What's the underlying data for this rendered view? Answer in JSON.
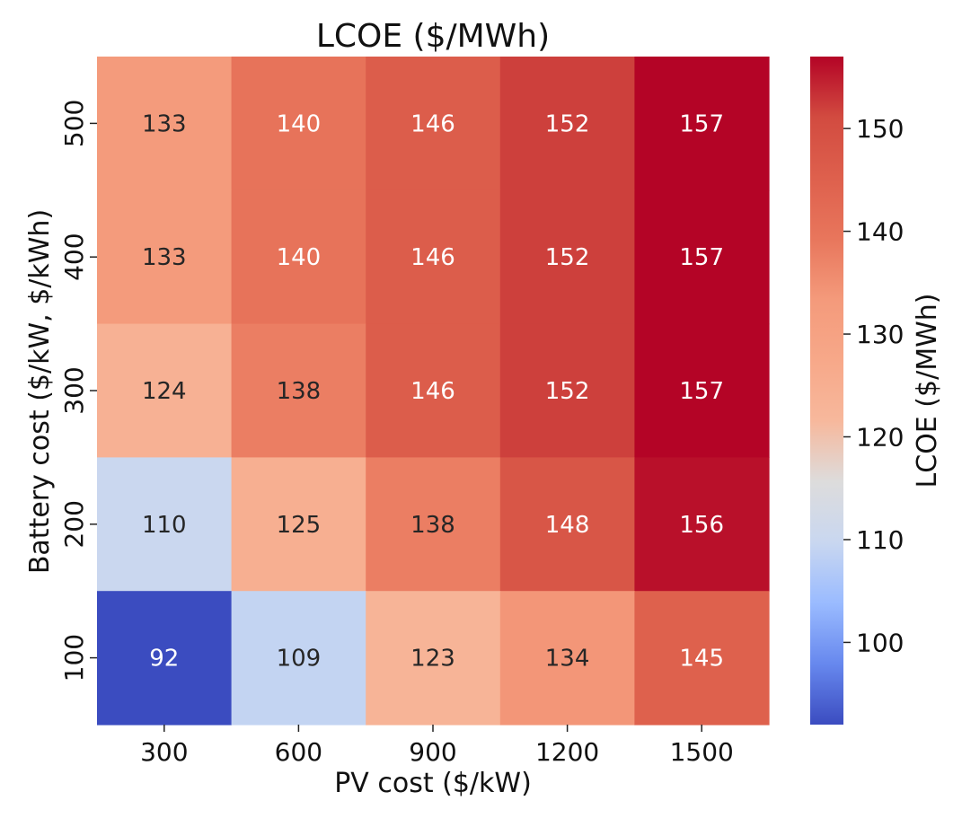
{
  "chart_data": {
    "type": "heatmap",
    "title": "LCOE ($/MWh)",
    "xlabel": "PV cost ($/kW)",
    "ylabel": "Battery cost ($/kW, $/kWh)",
    "x_categories": [
      "300",
      "600",
      "900",
      "1200",
      "1500"
    ],
    "y_categories": [
      "500",
      "400",
      "300",
      "200",
      "100"
    ],
    "values": [
      [
        133,
        140,
        146,
        152,
        157
      ],
      [
        133,
        140,
        146,
        152,
        157
      ],
      [
        124,
        138,
        146,
        152,
        157
      ],
      [
        110,
        125,
        138,
        148,
        156
      ],
      [
        92,
        109,
        123,
        134,
        145
      ]
    ],
    "colormap": "coolwarm",
    "colorbar": {
      "label": "LCOE ($/MWh)",
      "range": [
        92,
        157
      ],
      "ticks": [
        100,
        110,
        120,
        130,
        140,
        150
      ]
    },
    "value_range": [
      92,
      157
    ]
  },
  "colors": {
    "cmap_stops": [
      "#3b4cc0",
      "#6788ee",
      "#9abbff",
      "#c9d7f0",
      "#dddcdc",
      "#f7b89c",
      "#f7a889",
      "#f49a7b",
      "#e8765c",
      "#de604d",
      "#d24b40",
      "#b40426"
    ],
    "text_dark": "#262626",
    "text_light": "#ffffff"
  }
}
